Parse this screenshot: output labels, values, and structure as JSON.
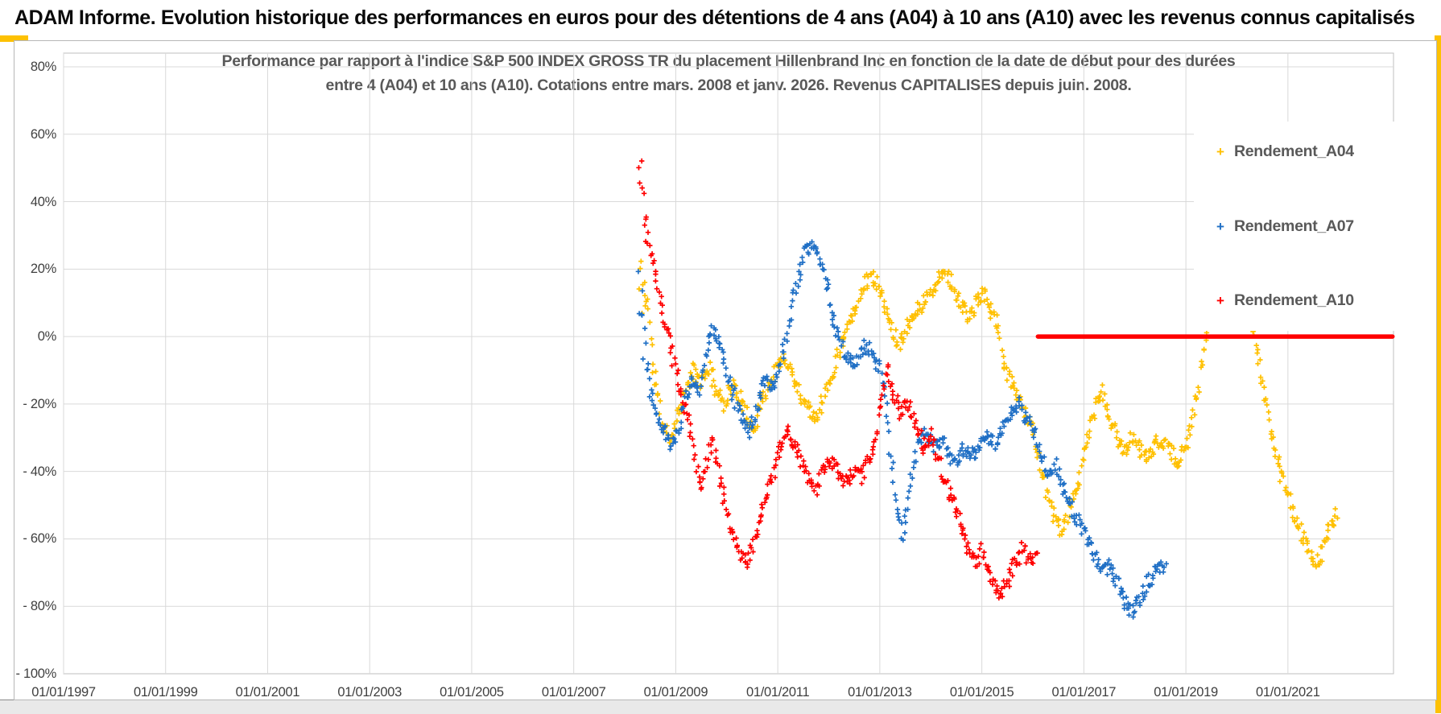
{
  "header": {
    "title": "ADAM Informe. Evolution historique des performances en euros pour des détentions de 4 ans (A04) à 10 ans (A10) avec les revenus connus capitalisés",
    "background_color": "#8dcc7e",
    "accent_color": "#fdc103"
  },
  "chart_data": {
    "type": "scatter",
    "marker": "plus",
    "title_line1": "Performance par rapport à l'indice S&P 500 INDEX GROSS TR  du placement Hillenbrand Inc en fonction de la date de début pour des durées",
    "title_line2": "entre 4 (A04) et 10 ans (A10). Cotations entre mars. 2008 et janv. 2026. Revenus CAPITALISES depuis juin. 2008.",
    "x_axis": {
      "tick_years": [
        1997,
        1999,
        2001,
        2003,
        2005,
        2007,
        2009,
        2011,
        2013,
        2015,
        2017,
        2019,
        2021
      ],
      "tick_labels": [
        "01/01/1997",
        "01/01/1999",
        "01/01/2001",
        "01/01/2003",
        "01/01/2005",
        "01/01/2007",
        "01/01/2009",
        "01/01/2011",
        "01/01/2013",
        "01/01/2015",
        "01/01/2017",
        "01/01/2019",
        "01/01/2021"
      ],
      "range_years": [
        1997.0,
        2023.07
      ]
    },
    "y_axis": {
      "tick_values": [
        80,
        60,
        40,
        20,
        0,
        -20,
        -40,
        -60,
        -80,
        -100
      ],
      "tick_labels": [
        "80%",
        "60%",
        "40%",
        "20%",
        "0%",
        "- 20%",
        "- 40%",
        "- 60%",
        "- 80%",
        "- 100%"
      ],
      "range_pct": [
        -100,
        80
      ],
      "grid": true
    },
    "legend_position": "right",
    "series": [
      {
        "name": "Rendement_A04",
        "color": "#FFC000",
        "n_points": 720,
        "jitter": 2.3,
        "seed": 11,
        "anchors": [
          [
            2008.28,
            14
          ],
          [
            2008.31,
            22
          ],
          [
            2008.34,
            10
          ],
          [
            2008.37,
            18
          ],
          [
            2008.4,
            8
          ],
          [
            2008.44,
            15
          ],
          [
            2008.48,
            5
          ],
          [
            2008.55,
            -8
          ],
          [
            2008.65,
            -18
          ],
          [
            2008.75,
            -27
          ],
          [
            2008.9,
            -30
          ],
          [
            2009.05,
            -22
          ],
          [
            2009.2,
            -16
          ],
          [
            2009.35,
            -10
          ],
          [
            2009.5,
            -14
          ],
          [
            2009.65,
            -9
          ],
          [
            2009.8,
            -16
          ],
          [
            2009.95,
            -20
          ],
          [
            2010.1,
            -14
          ],
          [
            2010.25,
            -18
          ],
          [
            2010.4,
            -24
          ],
          [
            2010.55,
            -27
          ],
          [
            2010.7,
            -18
          ],
          [
            2010.85,
            -14
          ],
          [
            2011.0,
            -9
          ],
          [
            2011.15,
            -6
          ],
          [
            2011.3,
            -12
          ],
          [
            2011.45,
            -17
          ],
          [
            2011.6,
            -21
          ],
          [
            2011.75,
            -24
          ],
          [
            2011.9,
            -18
          ],
          [
            2012.05,
            -12
          ],
          [
            2012.2,
            -4
          ],
          [
            2012.35,
            3
          ],
          [
            2012.5,
            8
          ],
          [
            2012.65,
            14
          ],
          [
            2012.8,
            18
          ],
          [
            2012.95,
            16
          ],
          [
            2013.1,
            9
          ],
          [
            2013.25,
            2
          ],
          [
            2013.4,
            -2
          ],
          [
            2013.55,
            4
          ],
          [
            2013.7,
            7
          ],
          [
            2013.85,
            10
          ],
          [
            2014.0,
            13
          ],
          [
            2014.15,
            17
          ],
          [
            2014.3,
            20
          ],
          [
            2014.45,
            14
          ],
          [
            2014.6,
            9
          ],
          [
            2014.75,
            6
          ],
          [
            2014.9,
            10
          ],
          [
            2015.05,
            13
          ],
          [
            2015.2,
            7
          ],
          [
            2015.35,
            2
          ],
          [
            2015.4,
            -8
          ],
          [
            2015.6,
            -14
          ],
          [
            2015.8,
            -20
          ],
          [
            2016.0,
            -28
          ],
          [
            2016.15,
            -38
          ],
          [
            2016.3,
            -48
          ],
          [
            2016.45,
            -55
          ],
          [
            2016.6,
            -58
          ],
          [
            2016.75,
            -50
          ],
          [
            2016.9,
            -42
          ],
          [
            2017.05,
            -32
          ],
          [
            2017.2,
            -22
          ],
          [
            2017.35,
            -16
          ],
          [
            2017.5,
            -24
          ],
          [
            2017.65,
            -30
          ],
          [
            2017.8,
            -34
          ],
          [
            2017.95,
            -30
          ],
          [
            2018.1,
            -33
          ],
          [
            2018.25,
            -36
          ],
          [
            2018.4,
            -32
          ],
          [
            2018.55,
            -30
          ],
          [
            2018.7,
            -34
          ],
          [
            2018.85,
            -38
          ],
          [
            2019.0,
            -33
          ],
          [
            2019.15,
            -24
          ],
          [
            2019.3,
            -10
          ],
          [
            2019.45,
            5
          ],
          [
            2019.55,
            13
          ],
          [
            2019.7,
            8
          ],
          [
            2019.85,
            3
          ],
          [
            2019.95,
            8
          ],
          [
            2020.1,
            13
          ],
          [
            2020.25,
            6
          ],
          [
            2020.4,
            -5
          ],
          [
            2020.55,
            -18
          ],
          [
            2020.7,
            -30
          ],
          [
            2020.85,
            -40
          ],
          [
            2021.0,
            -47
          ],
          [
            2021.15,
            -54
          ],
          [
            2021.3,
            -60
          ],
          [
            2021.45,
            -65
          ],
          [
            2021.6,
            -67
          ],
          [
            2021.75,
            -60
          ],
          [
            2021.85,
            -55
          ],
          [
            2021.97,
            -53
          ]
        ]
      },
      {
        "name": "Rendement_A07",
        "color": "#1F6FC5",
        "n_points": 540,
        "jitter": 2.4,
        "seed": 22,
        "anchors": [
          [
            2008.28,
            18
          ],
          [
            2008.31,
            5
          ],
          [
            2008.34,
            15
          ],
          [
            2008.37,
            -5
          ],
          [
            2008.4,
            8
          ],
          [
            2008.44,
            -10
          ],
          [
            2008.5,
            -15
          ],
          [
            2008.7,
            -25
          ],
          [
            2008.9,
            -32
          ],
          [
            2009.1,
            -25
          ],
          [
            2009.3,
            -12
          ],
          [
            2009.45,
            -18
          ],
          [
            2009.6,
            -5
          ],
          [
            2009.75,
            3
          ],
          [
            2009.9,
            -3
          ],
          [
            2010.0,
            -10
          ],
          [
            2010.15,
            -18
          ],
          [
            2010.3,
            -25
          ],
          [
            2010.45,
            -28
          ],
          [
            2010.6,
            -20
          ],
          [
            2010.75,
            -12
          ],
          [
            2010.9,
            -16
          ],
          [
            2011.05,
            -8
          ],
          [
            2011.2,
            0
          ],
          [
            2011.3,
            12
          ],
          [
            2011.45,
            20
          ],
          [
            2011.55,
            26
          ],
          [
            2011.75,
            28
          ],
          [
            2011.95,
            15
          ],
          [
            2012.1,
            5
          ],
          [
            2012.3,
            -5
          ],
          [
            2012.5,
            -8
          ],
          [
            2012.7,
            -2
          ],
          [
            2012.9,
            -6
          ],
          [
            2013.05,
            -12
          ],
          [
            2013.15,
            -25
          ],
          [
            2013.25,
            -40
          ],
          [
            2013.35,
            -52
          ],
          [
            2013.45,
            -60
          ],
          [
            2013.6,
            -45
          ],
          [
            2013.75,
            -32
          ],
          [
            2013.9,
            -28
          ],
          [
            2014.05,
            -33
          ],
          [
            2014.2,
            -30
          ],
          [
            2014.35,
            -35
          ],
          [
            2014.5,
            -38
          ],
          [
            2014.65,
            -33
          ],
          [
            2014.8,
            -36
          ],
          [
            2014.95,
            -32
          ],
          [
            2015.1,
            -28
          ],
          [
            2015.25,
            -32
          ],
          [
            2015.4,
            -28
          ],
          [
            2015.55,
            -24
          ],
          [
            2015.7,
            -20
          ],
          [
            2015.85,
            -24
          ],
          [
            2016.0,
            -28
          ],
          [
            2016.15,
            -35
          ],
          [
            2016.3,
            -42
          ],
          [
            2016.45,
            -38
          ],
          [
            2016.6,
            -45
          ],
          [
            2016.75,
            -50
          ],
          [
            2016.9,
            -55
          ],
          [
            2017.05,
            -60
          ],
          [
            2017.2,
            -65
          ],
          [
            2017.35,
            -70
          ],
          [
            2017.5,
            -68
          ],
          [
            2017.65,
            -73
          ],
          [
            2017.8,
            -78
          ],
          [
            2017.95,
            -81
          ],
          [
            2018.1,
            -78
          ],
          [
            2018.25,
            -73
          ],
          [
            2018.4,
            -70
          ],
          [
            2018.6,
            -68
          ]
        ]
      },
      {
        "name": "Rendement_A10",
        "color": "#FF0000",
        "n_points": 410,
        "jitter": 2.4,
        "seed": 33,
        "anchors": [
          [
            2008.28,
            45
          ],
          [
            2008.32,
            53
          ],
          [
            2008.36,
            38
          ],
          [
            2008.4,
            30
          ],
          [
            2008.44,
            35
          ],
          [
            2008.48,
            25
          ],
          [
            2008.55,
            22
          ],
          [
            2008.7,
            10
          ],
          [
            2008.85,
            0
          ],
          [
            2009.0,
            -10
          ],
          [
            2009.15,
            -20
          ],
          [
            2009.3,
            -28
          ],
          [
            2009.4,
            -38
          ],
          [
            2009.5,
            -45
          ],
          [
            2009.6,
            -38
          ],
          [
            2009.7,
            -30
          ],
          [
            2009.8,
            -36
          ],
          [
            2009.9,
            -44
          ],
          [
            2010.0,
            -52
          ],
          [
            2010.1,
            -58
          ],
          [
            2010.25,
            -64
          ],
          [
            2010.4,
            -67
          ],
          [
            2010.55,
            -60
          ],
          [
            2010.7,
            -52
          ],
          [
            2010.85,
            -44
          ],
          [
            2011.0,
            -36
          ],
          [
            2011.15,
            -28
          ],
          [
            2011.3,
            -31
          ],
          [
            2011.45,
            -36
          ],
          [
            2011.6,
            -42
          ],
          [
            2011.75,
            -45
          ],
          [
            2011.9,
            -40
          ],
          [
            2012.05,
            -37
          ],
          [
            2012.2,
            -41
          ],
          [
            2012.35,
            -44
          ],
          [
            2012.5,
            -40
          ],
          [
            2012.65,
            -42
          ],
          [
            2012.8,
            -36
          ],
          [
            2012.95,
            -28
          ],
          [
            2013.05,
            -16
          ],
          [
            2013.15,
            -10
          ],
          [
            2013.25,
            -16
          ],
          [
            2013.4,
            -23
          ],
          [
            2013.55,
            -19
          ],
          [
            2013.7,
            -26
          ],
          [
            2013.85,
            -33
          ],
          [
            2014.0,
            -29
          ],
          [
            2014.15,
            -36
          ],
          [
            2014.3,
            -44
          ],
          [
            2014.45,
            -50
          ],
          [
            2014.6,
            -57
          ],
          [
            2014.75,
            -63
          ],
          [
            2014.9,
            -68
          ],
          [
            2015.0,
            -63
          ],
          [
            2015.1,
            -68
          ],
          [
            2015.25,
            -74
          ],
          [
            2015.35,
            -78
          ],
          [
            2015.5,
            -73
          ],
          [
            2015.65,
            -67
          ],
          [
            2015.8,
            -63
          ],
          [
            2015.95,
            -66
          ],
          [
            2016.08,
            -64
          ]
        ]
      }
    ],
    "zero_line_segment": {
      "series": "Rendement_A10",
      "value_pct": 0,
      "from_year": 2016.1,
      "to_year": 2023.05,
      "color": "#FF0000"
    },
    "grid_color": "#d9d9d9",
    "axis_color": "#bfbfbf"
  }
}
